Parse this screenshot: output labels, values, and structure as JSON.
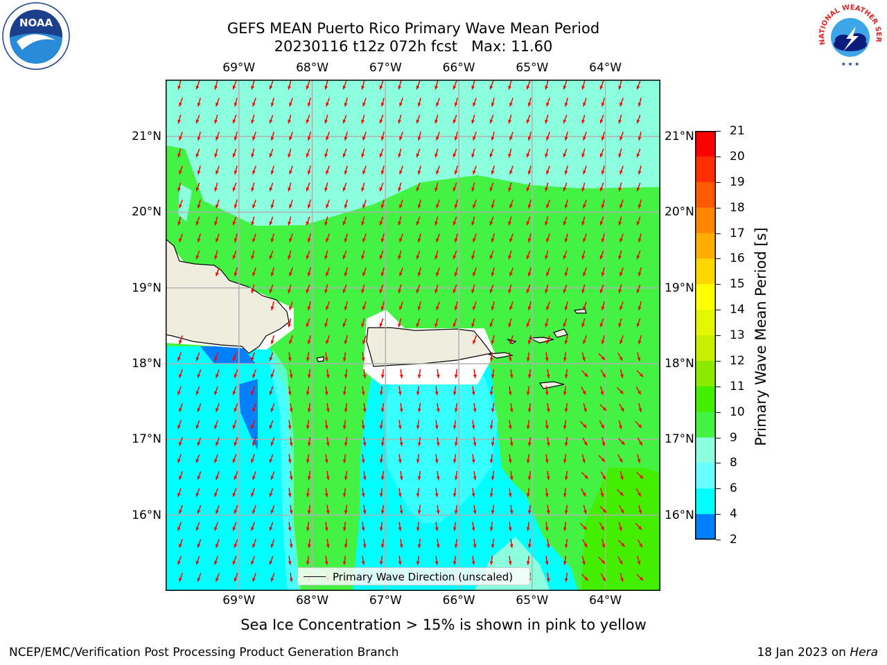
{
  "title": {
    "line1": "GEFS MEAN Puerto Rico Primary Wave Mean Period",
    "line2": "20230116 t12z 072h fcst   Max: 11.60"
  },
  "logos": {
    "noaa_text": "NOAA",
    "nws_text": "NATIONAL WEATHER SERVICE"
  },
  "map": {
    "lon_labels": [
      "69°W",
      "68°W",
      "67°W",
      "66°W",
      "65°W",
      "64°W"
    ],
    "lat_labels": [
      "21°N",
      "20°N",
      "19°N",
      "18°N",
      "17°N",
      "16°N"
    ],
    "extent": {
      "lon_min": -70.0,
      "lon_max": -63.25,
      "lat_min": 15.0,
      "lat_max": 21.75
    },
    "arrow_color": "#ff0000",
    "land_color": "#efedde",
    "grid": true
  },
  "colorbar": {
    "label": "Primary Wave Mean Period [s]",
    "ticks": [
      "21",
      "20",
      "19",
      "18",
      "17",
      "16",
      "15",
      "14",
      "13",
      "12",
      "11",
      "10",
      "9",
      "8",
      "6",
      "4",
      "2"
    ],
    "colors": [
      "#ff0000",
      "#ff2e00",
      "#ff5a00",
      "#ff8400",
      "#ffad00",
      "#ffd700",
      "#ffff00",
      "#e2f700",
      "#c7f000",
      "#8bea00",
      "#44ee00",
      "#44f244",
      "#8bffde",
      "#66ffff",
      "#00ffff",
      "#0080ff",
      "#0000ff"
    ]
  },
  "legend": {
    "label": "Primary Wave Direction (unscaled)"
  },
  "sea_ice_note": "Sea Ice Concentration > 15% is shown in pink to yellow",
  "footer": {
    "left": "NCEP/EMC/Verification Post Processing Product Generation Branch",
    "date": "18 Jan 2023 on ",
    "host": "Hera"
  }
}
